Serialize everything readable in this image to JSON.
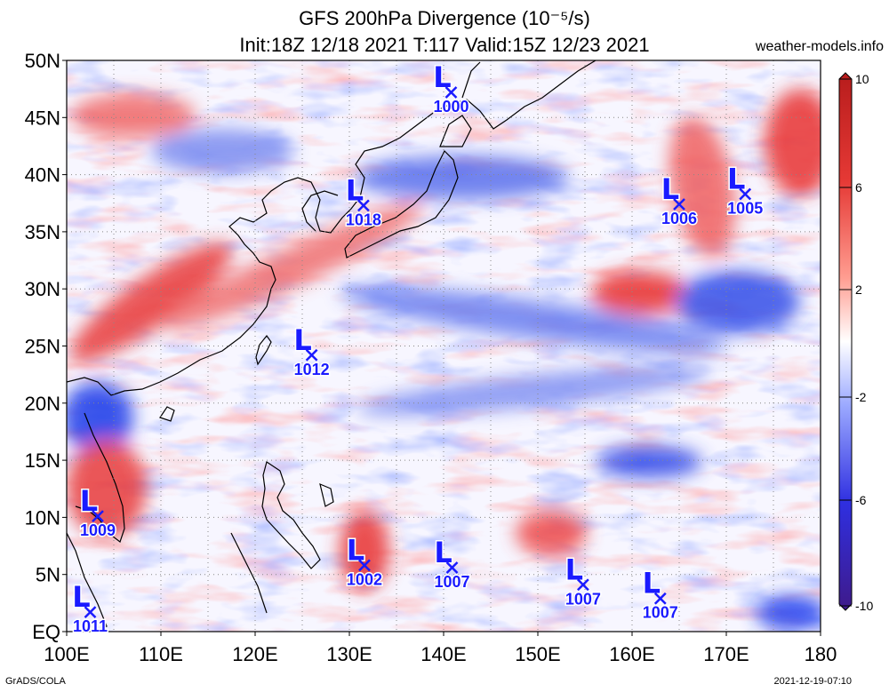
{
  "header": {
    "title_line1": "GFS 200hPa Divergence (10⁻⁵/s)",
    "title_line2": "Init:18Z 12/18 2021 T:117 Valid:15Z 12/23 2021",
    "site": "weather-models.info"
  },
  "footer": {
    "left": "GrADS/COLA",
    "right": "2021-12-19-07:10"
  },
  "map": {
    "lon_range": [
      100,
      180
    ],
    "lat_range": [
      0,
      50
    ],
    "lon_ticks": [
      "100E",
      "110E",
      "120E",
      "130E",
      "140E",
      "150E",
      "160E",
      "170E",
      "180"
    ],
    "lat_ticks": [
      "EQ",
      "5N",
      "10N",
      "15N",
      "20N",
      "25N",
      "30N",
      "35N",
      "40N",
      "45N",
      "50N"
    ],
    "grid": true
  },
  "colorbar": {
    "labels": [
      "10",
      "6",
      "2",
      "-2",
      "-6",
      "-10"
    ],
    "colors": [
      "#b71c1c",
      "#e53935",
      "#ff8a80",
      "#ffffff",
      "#8c9eff",
      "#2f2fe0",
      "#3f1a8a"
    ]
  },
  "lows": [
    {
      "symbol": "L",
      "pressure": "1000",
      "lon": 140.8,
      "lat": 47.2
    },
    {
      "symbol": "L",
      "pressure": "1018",
      "lon": 131.5,
      "lat": 37.3
    },
    {
      "symbol": "L",
      "pressure": "1006",
      "lon": 165.0,
      "lat": 37.4
    },
    {
      "symbol": "L",
      "pressure": "1005",
      "lon": 172.0,
      "lat": 38.3
    },
    {
      "symbol": "L",
      "pressure": "1012",
      "lon": 126.0,
      "lat": 24.2
    },
    {
      "symbol": "L",
      "pressure": "1009",
      "lon": 103.3,
      "lat": 10.1
    },
    {
      "symbol": "L",
      "pressure": "1002",
      "lon": 131.6,
      "lat": 5.8
    },
    {
      "symbol": "L",
      "pressure": "1007",
      "lon": 140.9,
      "lat": 5.6
    },
    {
      "symbol": "L",
      "pressure": "1007",
      "lon": 154.8,
      "lat": 4.1
    },
    {
      "symbol": "L",
      "pressure": "1007",
      "lon": 163.0,
      "lat": 2.9
    },
    {
      "symbol": "L",
      "pressure": "1011",
      "lon": 102.5,
      "lat": 1.7
    }
  ]
}
